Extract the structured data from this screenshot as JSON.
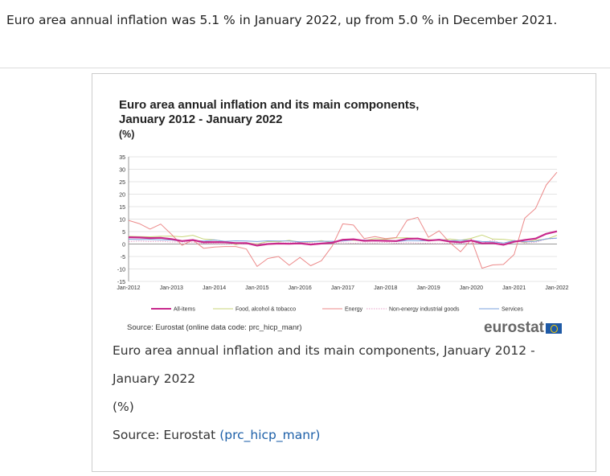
{
  "headline": "Euro area annual inflation was 5.1 % in January 2022, up from 5.0 % in December 2021.",
  "chart_data": {
    "type": "line",
    "title_line1": "Euro area annual inflation and its main components,",
    "title_line2": "January 2012 - January 2022",
    "unit": "(%)",
    "ylim": [
      -15,
      35
    ],
    "yticks": [
      "35",
      "30",
      "25",
      "20",
      "15",
      "10",
      "5",
      "0",
      "-5",
      "-10",
      "-15"
    ],
    "xticks": [
      "Jan-2012",
      "Jan-2013",
      "Jan-2014",
      "Jan-2015",
      "Jan-2016",
      "Jan-2017",
      "Jan-2018",
      "Jan-2019",
      "Jan-2020",
      "Jan-2021",
      "Jan-2022"
    ],
    "x_frequency": "quarterly",
    "legend_position": "bottom",
    "series": [
      {
        "name": "All-items",
        "color": "#c8288c",
        "style": "thick",
        "values": [
          2.7,
          2.6,
          2.4,
          2.5,
          2.0,
          1.2,
          1.6,
          0.7,
          0.8,
          0.7,
          0.4,
          0.4,
          -0.6,
          0.0,
          0.2,
          0.1,
          0.3,
          -0.2,
          0.2,
          0.5,
          1.7,
          1.9,
          1.3,
          1.4,
          1.3,
          1.2,
          2.1,
          2.2,
          1.4,
          1.7,
          1.0,
          0.7,
          1.4,
          0.3,
          0.4,
          -0.3,
          0.9,
          1.6,
          2.2,
          4.1,
          5.1
        ]
      },
      {
        "name": "Food, alcohol & tobacco",
        "color": "#c9d67a",
        "style": "solid",
        "values": [
          3.1,
          3.0,
          2.9,
          3.1,
          3.2,
          2.9,
          3.5,
          2.0,
          1.7,
          1.0,
          -0.3,
          0.5,
          0.0,
          1.0,
          0.9,
          1.5,
          0.7,
          0.8,
          1.4,
          0.5,
          1.8,
          1.5,
          1.4,
          2.2,
          1.9,
          2.5,
          2.5,
          2.2,
          1.8,
          1.5,
          2.0,
          1.5,
          2.3,
          3.6,
          2.0,
          1.9,
          1.4,
          0.6,
          1.6,
          1.9,
          3.5
        ]
      },
      {
        "name": "Energy",
        "color": "#ec8a8a",
        "style": "solid",
        "values": [
          9.5,
          8.2,
          6.0,
          8.0,
          3.9,
          -0.5,
          1.6,
          -1.7,
          -1.2,
          -1.0,
          -1.0,
          -2.0,
          -9.0,
          -5.8,
          -5.0,
          -8.5,
          -5.4,
          -8.7,
          -6.7,
          -0.9,
          8.1,
          7.6,
          2.2,
          3.0,
          2.2,
          2.6,
          9.5,
          10.7,
          2.7,
          5.3,
          0.5,
          -3.1,
          1.9,
          -9.7,
          -8.4,
          -8.2,
          -4.2,
          10.4,
          14.3,
          23.7,
          28.8
        ]
      },
      {
        "name": "Non-energy industrial goods",
        "color": "#e8a0c8",
        "style": "dotted",
        "values": [
          1.0,
          1.2,
          1.0,
          1.1,
          0.8,
          0.8,
          0.7,
          0.3,
          0.2,
          0.1,
          0.0,
          -0.1,
          0.2,
          0.2,
          0.4,
          0.5,
          0.7,
          0.5,
          0.3,
          0.3,
          0.5,
          0.3,
          0.5,
          0.4,
          0.7,
          0.3,
          0.5,
          0.4,
          0.3,
          0.2,
          0.3,
          0.3,
          0.3,
          0.3,
          1.6,
          -0.1,
          1.5,
          0.4,
          0.7,
          2.0,
          2.3
        ]
      },
      {
        "name": "Services",
        "color": "#7aa0dc",
        "style": "solid",
        "values": [
          1.9,
          1.8,
          1.8,
          1.7,
          1.6,
          1.1,
          1.4,
          1.2,
          1.6,
          1.1,
          1.3,
          1.2,
          1.0,
          1.3,
          1.2,
          1.2,
          0.9,
          1.0,
          1.1,
          1.1,
          1.2,
          1.6,
          1.6,
          1.2,
          1.3,
          1.0,
          1.4,
          1.3,
          1.4,
          1.9,
          1.3,
          1.5,
          1.5,
          1.0,
          0.9,
          0.4,
          1.4,
          0.9,
          1.1,
          2.1,
          2.4
        ]
      }
    ],
    "source": "Source: Eurostat (online data code: prc_hicp_manr)",
    "logo_text": "eurostat"
  },
  "caption": {
    "title": "Euro area annual inflation and its main components, January 2012 -",
    "title_cont": "January 2022",
    "unit": "(%)",
    "source_prefix": "Source: Eurostat ",
    "source_link": "(prc_hicp_manr)"
  }
}
